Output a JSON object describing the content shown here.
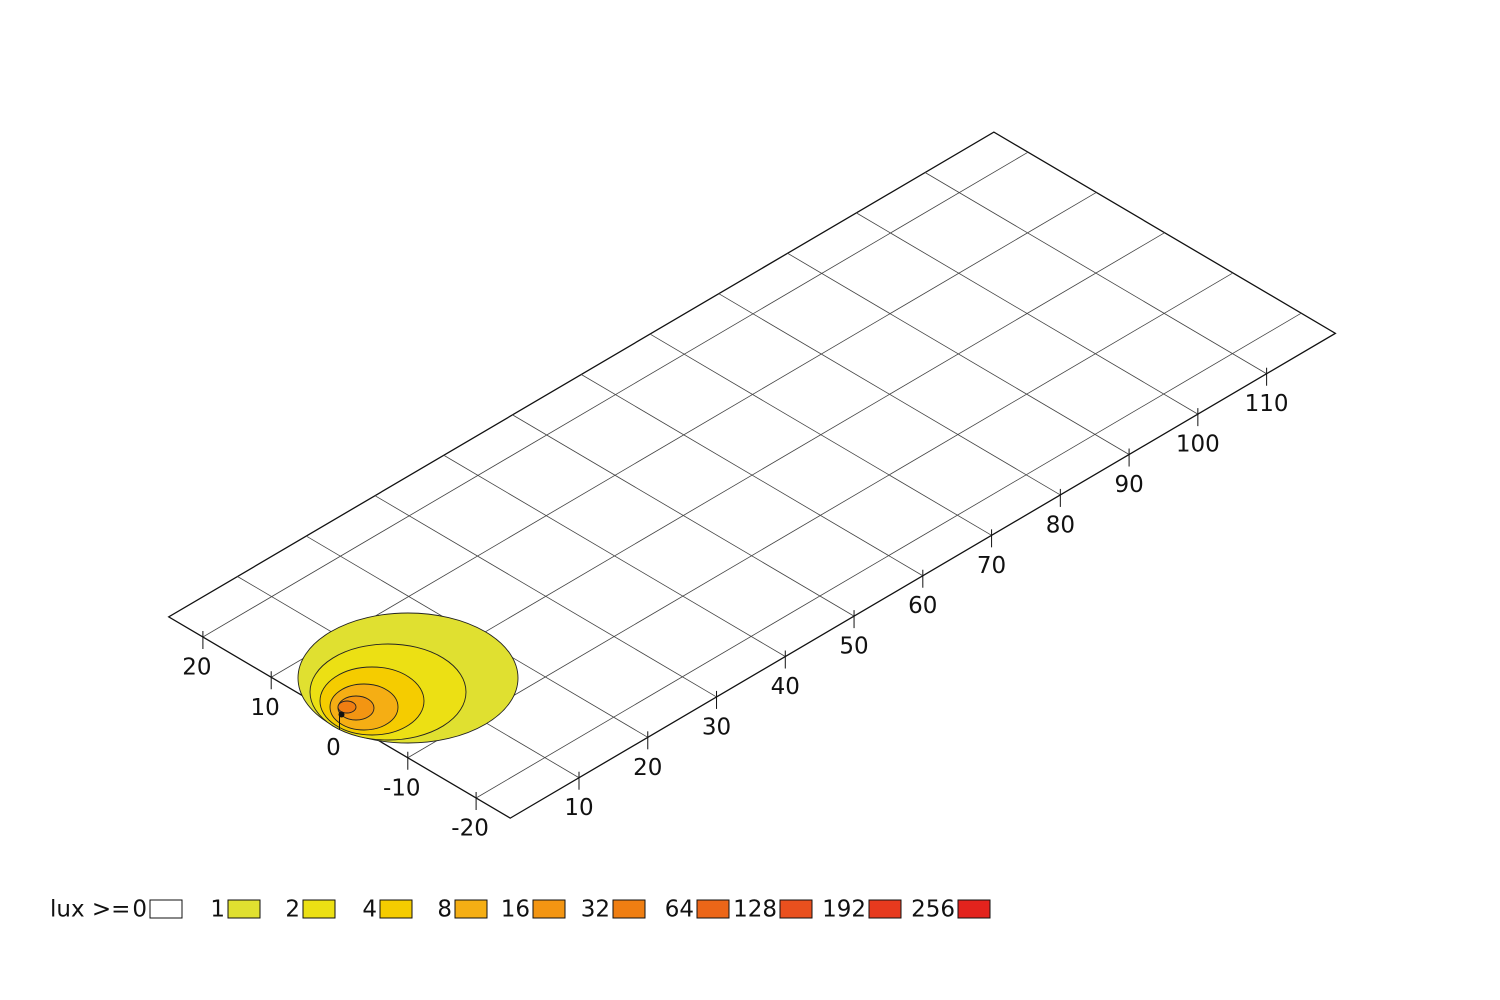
{
  "chart_data": {
    "type": "isolux",
    "legend_title": "lux >=",
    "levels": [
      0,
      1,
      2,
      4,
      8,
      16,
      32,
      64,
      128,
      192,
      256
    ],
    "colors": [
      "#ffffff",
      "#e0e030",
      "#ece014",
      "#f5cc00",
      "#f5ae14",
      "#f39512",
      "#ef7e12",
      "#ec6618",
      "#e9501e",
      "#e73a1e",
      "#e3231d"
    ],
    "xlim": [
      0,
      120
    ],
    "xticks": [
      10,
      20,
      30,
      40,
      50,
      60,
      70,
      80,
      90,
      100,
      110
    ],
    "ylim": [
      -25,
      25
    ],
    "yticks": [
      -20,
      -10,
      0,
      10,
      20
    ],
    "grid": true
  }
}
